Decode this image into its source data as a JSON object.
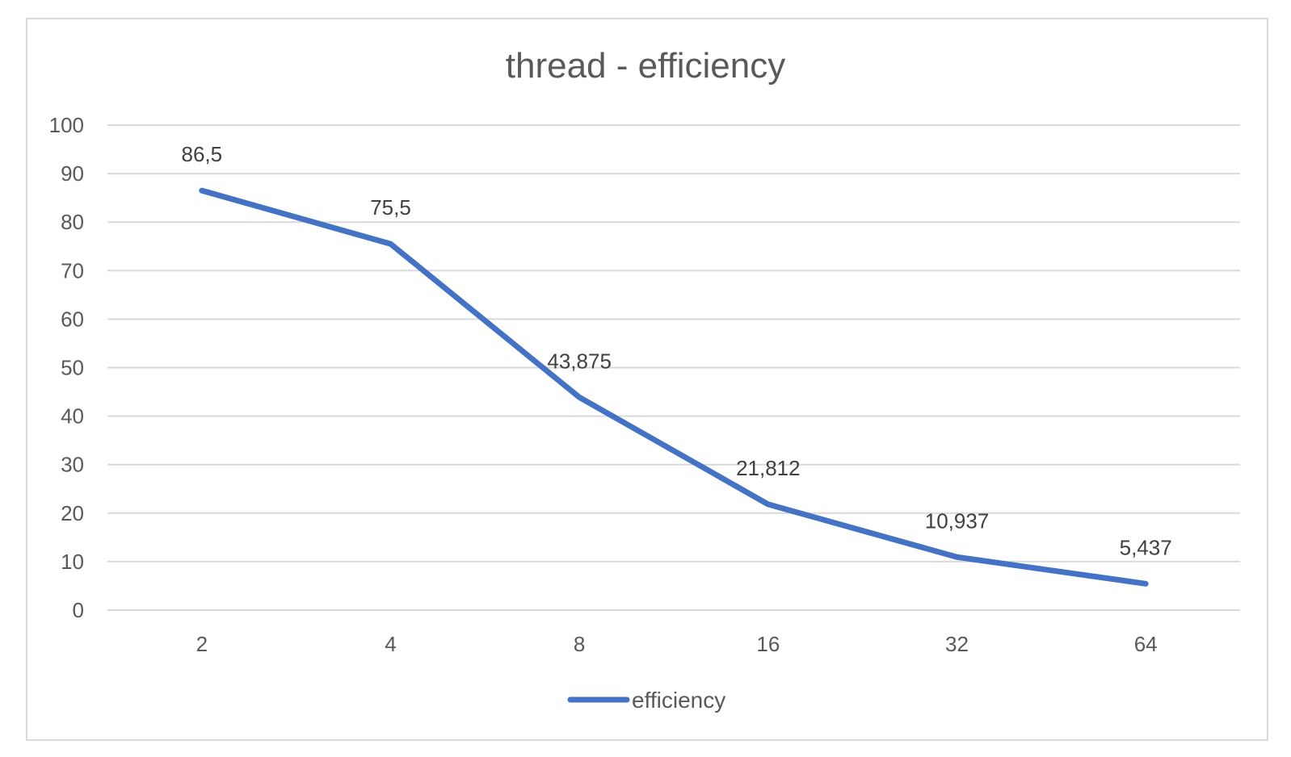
{
  "chart_data": {
    "type": "line",
    "title": "thread - efficiency",
    "categories": [
      "2",
      "4",
      "8",
      "16",
      "32",
      "64"
    ],
    "series": [
      {
        "name": "efficiency",
        "values": [
          86.5,
          75.5,
          43.875,
          21.812,
          10.937,
          5.437
        ],
        "data_labels": [
          "86,5",
          "75,5",
          "43,875",
          "21,812",
          "10,937",
          "5,437"
        ],
        "color": "#4472C4"
      }
    ],
    "y_ticks": [
      "0",
      "10",
      "20",
      "30",
      "40",
      "50",
      "60",
      "70",
      "80",
      "90",
      "100"
    ],
    "ylim": [
      0,
      100
    ],
    "grid": true,
    "legend": "bottom",
    "gridline_color": "#d9d9d9",
    "text_color": "#595959"
  }
}
